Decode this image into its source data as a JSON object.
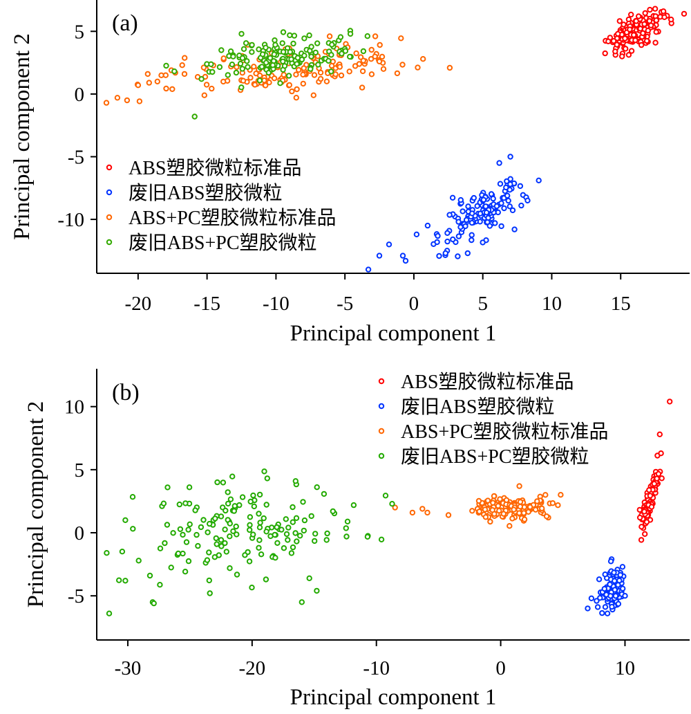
{
  "chart_data": [
    {
      "type": "scatter",
      "panel_label": "(a)",
      "xlabel": "Principal component 1",
      "ylabel": "Principal component 2",
      "xlim": [
        -23,
        20
      ],
      "ylim": [
        -14.3,
        7.5
      ],
      "xticks": [
        -20,
        -15,
        -10,
        -5,
        0,
        5,
        10,
        15
      ],
      "yticks": [
        5,
        0,
        -5,
        -10
      ],
      "legend_position": "left-middle",
      "series": [
        {
          "name": "ABS塑胶微粒标准品",
          "color": "#ff0000",
          "center": [
            16,
            5
          ],
          "spread": [
            1.0,
            0.8
          ],
          "count": 150,
          "corr": 0.6,
          "points": [
            [
              14.1,
              4.2
            ],
            [
              14.6,
              3.4
            ],
            [
              15.1,
              3.0
            ],
            [
              17.5,
              6.8
            ],
            [
              18.1,
              6.6
            ],
            [
              19.6,
              6.4
            ],
            [
              16.3,
              6.2
            ],
            [
              14.8,
              4.8
            ]
          ]
        },
        {
          "name": "废旧ABS塑胶微粒",
          "color": "#0033ff",
          "center": [
            4.8,
            -9.6
          ],
          "spread": [
            1.5,
            1.3
          ],
          "count": 140,
          "corr": 0.75,
          "points": [
            [
              -3.3,
              -14.0
            ],
            [
              -2.5,
              -12.9
            ],
            [
              -1.8,
              -12.0
            ],
            [
              -0.6,
              -13.3
            ],
            [
              -0.8,
              -12.9
            ],
            [
              7.0,
              -5.0
            ],
            [
              6.2,
              -5.5
            ],
            [
              7.3,
              -10.8
            ],
            [
              2.3,
              -12.7
            ],
            [
              0.2,
              -11.2
            ],
            [
              1.0,
              -10.5
            ]
          ]
        },
        {
          "name": "ABS+PC塑胶微粒标准品",
          "color": "#ff6600",
          "center": [
            -9,
            2.0
          ],
          "spread": [
            4.2,
            1.0
          ],
          "count": 150,
          "corr": 0.35,
          "points": [
            [
              -22.3,
              -0.7
            ],
            [
              -21.5,
              -0.3
            ],
            [
              -20.8,
              -0.5
            ],
            [
              -20.0,
              0.7
            ],
            [
              -19.2,
              0.9
            ],
            [
              -18.6,
              1.0
            ],
            [
              -18.0,
              1.5
            ],
            [
              -17.3,
              1.7
            ],
            [
              -16.8,
              2.3
            ],
            [
              -2.2,
              2.0
            ],
            [
              -2.8,
              4.6
            ],
            [
              -3.1,
              2.8
            ],
            [
              -2.5,
              2.6
            ]
          ]
        },
        {
          "name": "废旧ABS+PC塑胶微粒",
          "color": "#33aa00",
          "center": [
            -10,
            2.9
          ],
          "spread": [
            2.6,
            0.8
          ],
          "count": 140,
          "corr": 0.25,
          "points": [
            [
              -15.9,
              -1.8
            ],
            [
              -12.5,
              4.8
            ],
            [
              -4.6,
              4.8
            ],
            [
              -15.4,
              1.2
            ],
            [
              -6.0,
              1.8
            ],
            [
              -7.5,
              2.0
            ]
          ]
        }
      ]
    },
    {
      "type": "scatter",
      "panel_label": "(b)",
      "xlabel": "Principal component 1",
      "ylabel": "Principal component 2",
      "xlim": [
        -32.5,
        15.2
      ],
      "ylim": [
        -8.5,
        13
      ],
      "xticks": [
        -30,
        -20,
        -10,
        0,
        10
      ],
      "yticks": [
        10,
        5,
        0,
        -5
      ],
      "legend_position": "top-right",
      "series": [
        {
          "name": "ABS塑胶微粒标准品",
          "color": "#ff0000",
          "center": [
            12.0,
            2.5
          ],
          "spread": [
            0.35,
            1.2
          ],
          "count": 110,
          "corr": 0.85,
          "points": [
            [
              13.6,
              10.4
            ],
            [
              12.8,
              7.8
            ],
            [
              12.9,
              6.3
            ],
            [
              11.6,
              -0.1
            ],
            [
              11.2,
              1.2
            ]
          ]
        },
        {
          "name": "废旧ABS塑胶微粒",
          "color": "#0033ff",
          "center": [
            9.0,
            -4.4
          ],
          "spread": [
            0.45,
            0.8
          ],
          "count": 110,
          "corr": 0.1,
          "points": [
            [
              7.0,
              -6.0
            ],
            [
              7.3,
              -5.2
            ],
            [
              9.8,
              -2.7
            ],
            [
              8.4,
              -3.3
            ],
            [
              10.0,
              -5.0
            ]
          ]
        },
        {
          "name": "ABS+PC塑胶微粒标准品",
          "color": "#ff6600",
          "center": [
            0.7,
            2.0
          ],
          "spread": [
            1.5,
            0.45
          ],
          "count": 150,
          "corr": 0.05,
          "points": [
            [
              -8.5,
              2.0
            ],
            [
              -7.1,
              1.6
            ],
            [
              -6.3,
              1.9
            ],
            [
              -5.9,
              1.6
            ],
            [
              -4.2,
              1.4
            ],
            [
              3.7,
              1.3
            ],
            [
              3.6,
              3.0
            ],
            [
              1.5,
              3.7
            ]
          ]
        },
        {
          "name": "废旧ABS+PC塑胶微粒",
          "color": "#22aa00",
          "center": [
            -20.5,
            0.2
          ],
          "spread": [
            4.0,
            1.9
          ],
          "count": 150,
          "corr": 0.1,
          "points": [
            [
              -31.5,
              -6.4
            ],
            [
              -31.7,
              -1.6
            ],
            [
              -30.2,
              1.0
            ],
            [
              -30.2,
              -3.8
            ],
            [
              -28.0,
              -5.5
            ],
            [
              -27.9,
              -5.6
            ],
            [
              -26.8,
              3.6
            ],
            [
              -22.8,
              4.0
            ],
            [
              -16.5,
              4.1
            ],
            [
              -16.0,
              -5.5
            ],
            [
              -14.8,
              -4.6
            ],
            [
              -13.5,
              1.7
            ],
            [
              -12.4,
              -0.3
            ],
            [
              -23.4,
              -4.8
            ]
          ]
        }
      ]
    }
  ]
}
